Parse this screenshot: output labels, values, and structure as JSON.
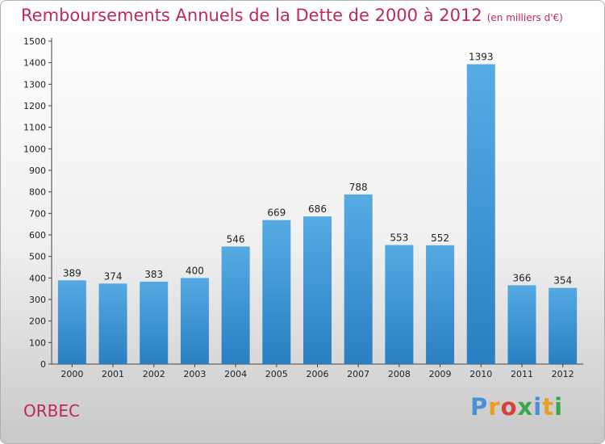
{
  "city": "ORBEC",
  "logo": {
    "text": "Proxiti",
    "colors": [
      "#4a90d9",
      "#e8a020",
      "#d8403a",
      "#3aa84a",
      "#4a90d9",
      "#e8a020",
      "#3aa84a"
    ]
  },
  "chart_data": {
    "type": "bar",
    "title": "Remboursements Annuels de la Dette de 2000 à 2012",
    "subtitle": "(en milliers d'€)",
    "categories": [
      "2000",
      "2001",
      "2002",
      "2003",
      "2004",
      "2005",
      "2006",
      "2007",
      "2008",
      "2009",
      "2010",
      "2011",
      "2012"
    ],
    "values": [
      389,
      374,
      383,
      400,
      546,
      669,
      686,
      788,
      553,
      552,
      1393,
      366,
      354
    ],
    "ylim": [
      0,
      1500
    ],
    "yticks": [
      0,
      100,
      200,
      300,
      400,
      500,
      600,
      700,
      800,
      900,
      1000,
      1100,
      1200,
      1300,
      1400,
      1500
    ],
    "xlabel": "",
    "ylabel": "",
    "grid": false,
    "bar_color": "#3a9ee0",
    "bar_color_dark": "#2a7fc2"
  }
}
